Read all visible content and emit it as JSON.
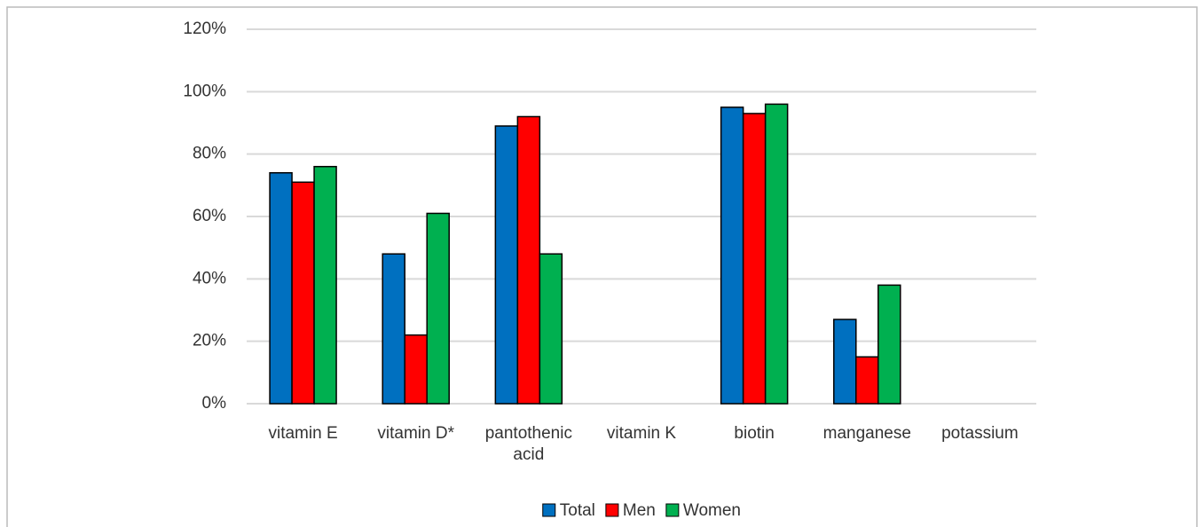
{
  "chart_data": {
    "type": "bar",
    "categories": [
      "vitamin E",
      "vitamin D*",
      "pantothenic acid",
      "vitamin K",
      "biotin",
      "manganese",
      "potassium"
    ],
    "series": [
      {
        "name": "Total",
        "color": "#0070c0",
        "values": [
          74,
          48,
          89,
          null,
          95,
          27,
          null
        ]
      },
      {
        "name": "Men",
        "color": "#ff0000",
        "values": [
          71,
          22,
          92,
          null,
          93,
          15,
          null
        ]
      },
      {
        "name": "Women",
        "color": "#00b050",
        "values": [
          76,
          61,
          48,
          null,
          96,
          38,
          null
        ]
      }
    ],
    "ylim": [
      0,
      120
    ],
    "yticks": [
      {
        "value": 0,
        "label": "0%"
      },
      {
        "value": 20,
        "label": "20%"
      },
      {
        "value": 40,
        "label": "40%"
      },
      {
        "value": 60,
        "label": "60%"
      },
      {
        "value": 80,
        "label": "80%"
      },
      {
        "value": 100,
        "label": "100%"
      },
      {
        "value": 120,
        "label": "120%"
      }
    ],
    "grid": true,
    "legend": "bottom"
  }
}
